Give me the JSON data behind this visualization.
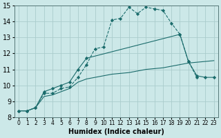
{
  "xlabel": "Humidex (Indice chaleur)",
  "xlim": [
    -0.5,
    23.5
  ],
  "ylim": [
    8,
    15
  ],
  "xticks": [
    0,
    1,
    2,
    3,
    4,
    5,
    6,
    7,
    8,
    9,
    10,
    11,
    12,
    13,
    14,
    15,
    16,
    17,
    18,
    19,
    20,
    21,
    22,
    23
  ],
  "yticks": [
    8,
    9,
    10,
    11,
    12,
    13,
    14,
    15
  ],
  "background_color": "#cce8e8",
  "grid_color": "#aacccc",
  "line_color": "#1a6b6b",
  "curve1_x": [
    0,
    1,
    2,
    3,
    4,
    5,
    6,
    7,
    8,
    9,
    10,
    11,
    12,
    13,
    14,
    15,
    16,
    17,
    18,
    19,
    20,
    21
  ],
  "curve1_y": [
    8.4,
    8.4,
    8.6,
    9.5,
    9.5,
    9.8,
    9.9,
    10.5,
    11.3,
    12.3,
    12.4,
    14.1,
    14.2,
    14.9,
    14.5,
    14.9,
    14.8,
    14.7,
    13.9,
    13.2,
    11.5,
    10.5
  ],
  "curve2_x": [
    0,
    1,
    2,
    3,
    4,
    5,
    6,
    7,
    8,
    19,
    20,
    21,
    22,
    23
  ],
  "curve2_y": [
    8.4,
    8.4,
    8.6,
    9.6,
    9.8,
    10.0,
    10.2,
    11.0,
    11.7,
    13.2,
    11.5,
    10.6,
    10.5,
    10.5
  ],
  "curve3_x": [
    0,
    1,
    2,
    3,
    4,
    5,
    6,
    7,
    8,
    9,
    10,
    11,
    12,
    13,
    14,
    15,
    16,
    17,
    18,
    19,
    20,
    21,
    22,
    23
  ],
  "curve3_y": [
    8.4,
    8.4,
    8.6,
    9.3,
    9.4,
    9.6,
    9.8,
    10.2,
    10.4,
    10.5,
    10.6,
    10.7,
    10.75,
    10.8,
    10.9,
    11.0,
    11.05,
    11.1,
    11.2,
    11.3,
    11.4,
    11.45,
    11.5,
    11.55
  ]
}
